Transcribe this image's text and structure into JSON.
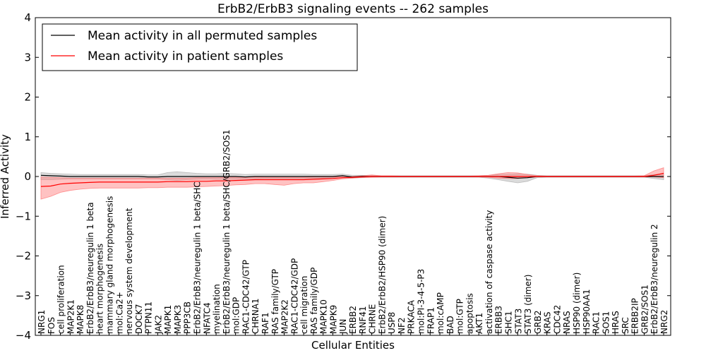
{
  "chart_data": {
    "type": "line",
    "title": "ErbB2/ErbB3 signaling events -- 262 samples",
    "xlabel": "Cellular Entities",
    "ylabel": "Inferred Activity",
    "ylim": [
      -4,
      4
    ],
    "yticks": [
      -4,
      -3,
      -2,
      -1,
      0,
      1,
      2,
      3,
      4
    ],
    "legend_position": "top-left",
    "categories": [
      "NRG1",
      "FOS",
      "cell proliferation",
      "MAP2K1",
      "MAPK8",
      "ErbB2/ErbB3/neuregulin 1 beta",
      "heart morphogenesis",
      "mammary gland morphogenesis",
      "mol:Ca2+",
      "nervous system development",
      "DOCK7",
      "PTPN11",
      "JAK2",
      "MAPK1",
      "MAPK3",
      "PPP3CB",
      "ErbB2/ErbB3/neuregulin 1 beta/SHC",
      "NFATC4",
      "myelination",
      "ErbB2/ErbB3/neuregulin 1 beta/SHC/GRB2/SOS1",
      "mol:GDP",
      "RAC1-CDC42/GTP",
      "CHRNA1",
      "RAF1",
      "RAS family/GTP",
      "MAP2K2",
      "RAC1-CDC42/GDP",
      "cell migration",
      "RAS family/GDP",
      "MAPK10",
      "MAPK9",
      "JUN",
      "ERBB2",
      "RNF41",
      "CHRNE",
      "ErbB2/ErbB2/HSP90 (dimer)",
      "USP8",
      "NF2",
      "PRKACA",
      "mol:PI-3-4-5-P3",
      "FRAP1",
      "mol:cAMP",
      "BAD",
      "mol:GTP",
      "apoptosis",
      "AKT1",
      "activation of caspase activity",
      "ERBB3",
      "SHC1",
      "STAT3",
      "STAT3 (dimer)",
      "GRB2",
      "KRAS",
      "CDC42",
      "NRAS",
      "HSP90 (dimer)",
      "HSP90AA1",
      "RAC1",
      "SOS1",
      "HRAS",
      "SRC",
      "ERBB2IP",
      "GRB2/SOS1",
      "ErbB2/ErbB3/neuregulin 2",
      "NRG2"
    ],
    "series": [
      {
        "name": "Mean activity in all permuted samples",
        "color": "#000000",
        "band_color": "#b0b0b0",
        "values": [
          0.03,
          0.02,
          0.01,
          0.0,
          0.0,
          0.0,
          0.0,
          0.0,
          0.0,
          0.0,
          0.0,
          -0.01,
          -0.01,
          0.0,
          0.0,
          0.0,
          0.0,
          0.0,
          0.0,
          0.0,
          0.0,
          -0.01,
          0.0,
          0.0,
          0.0,
          0.0,
          0.0,
          0.0,
          0.0,
          0.0,
          0.0,
          0.02,
          -0.01,
          0.0,
          0.0,
          0.0,
          0.0,
          0.0,
          0.0,
          0.0,
          0.0,
          0.0,
          0.0,
          0.0,
          0.0,
          0.0,
          0.0,
          0.0,
          -0.02,
          -0.04,
          -0.03,
          0.0,
          0.0,
          0.0,
          0.0,
          0.0,
          0.0,
          0.0,
          0.0,
          0.0,
          0.0,
          0.0,
          0.0,
          0.0,
          0.0
        ],
        "upper": [
          0.1,
          0.08,
          0.07,
          0.06,
          0.05,
          0.05,
          0.05,
          0.05,
          0.05,
          0.05,
          0.05,
          0.04,
          0.04,
          0.1,
          0.12,
          0.1,
          0.08,
          0.07,
          0.07,
          0.08,
          0.07,
          0.05,
          0.06,
          0.06,
          0.06,
          0.06,
          0.06,
          0.06,
          0.05,
          0.05,
          0.05,
          0.06,
          0.03,
          0.03,
          0.02,
          0.02,
          0.02,
          0.02,
          0.02,
          0.02,
          0.02,
          0.02,
          0.02,
          0.02,
          0.02,
          0.02,
          0.03,
          0.05,
          0.06,
          0.07,
          0.06,
          0.03,
          0.02,
          0.02,
          0.02,
          0.02,
          0.02,
          0.02,
          0.02,
          0.02,
          0.02,
          0.02,
          0.02,
          0.05,
          0.07
        ],
        "lower": [
          -0.08,
          -0.08,
          -0.07,
          -0.06,
          -0.06,
          -0.06,
          -0.06,
          -0.06,
          -0.06,
          -0.06,
          -0.06,
          -0.06,
          -0.06,
          -0.08,
          -0.1,
          -0.08,
          -0.07,
          -0.06,
          -0.07,
          -0.07,
          -0.07,
          -0.06,
          -0.06,
          -0.05,
          -0.05,
          -0.05,
          -0.05,
          -0.05,
          -0.05,
          -0.05,
          -0.04,
          -0.03,
          -0.04,
          -0.03,
          -0.02,
          -0.02,
          -0.02,
          -0.02,
          -0.02,
          -0.02,
          -0.02,
          -0.02,
          -0.02,
          -0.02,
          -0.02,
          -0.02,
          -0.04,
          -0.08,
          -0.12,
          -0.16,
          -0.12,
          -0.03,
          -0.02,
          -0.02,
          -0.02,
          -0.02,
          -0.02,
          -0.02,
          -0.02,
          -0.02,
          -0.02,
          -0.02,
          -0.02,
          -0.05,
          -0.08
        ]
      },
      {
        "name": "Mean activity in patient samples",
        "color": "#ff0000",
        "band_color": "#ff7777",
        "values": [
          -0.25,
          -0.24,
          -0.19,
          -0.17,
          -0.16,
          -0.15,
          -0.14,
          -0.14,
          -0.14,
          -0.14,
          -0.14,
          -0.14,
          -0.14,
          -0.13,
          -0.13,
          -0.13,
          -0.12,
          -0.12,
          -0.11,
          -0.11,
          -0.1,
          -0.09,
          -0.08,
          -0.08,
          -0.08,
          -0.08,
          -0.08,
          -0.08,
          -0.07,
          -0.06,
          -0.05,
          -0.03,
          -0.02,
          -0.01,
          0.0,
          0.0,
          0.0,
          0.0,
          0.0,
          0.0,
          0.0,
          0.0,
          0.0,
          0.0,
          0.0,
          0.0,
          0.0,
          0.0,
          0.0,
          0.0,
          0.0,
          0.0,
          0.0,
          0.0,
          0.0,
          0.0,
          0.0,
          0.0,
          0.0,
          0.0,
          0.0,
          0.0,
          0.0,
          0.03,
          0.08
        ],
        "upper": [
          -0.01,
          -0.02,
          -0.03,
          -0.04,
          -0.04,
          -0.04,
          -0.04,
          -0.04,
          -0.04,
          -0.04,
          -0.04,
          -0.04,
          -0.04,
          -0.04,
          -0.04,
          -0.04,
          -0.03,
          -0.03,
          -0.03,
          -0.02,
          -0.02,
          -0.02,
          -0.01,
          -0.02,
          -0.02,
          -0.02,
          -0.02,
          -0.02,
          -0.01,
          -0.01,
          -0.01,
          0.0,
          0.0,
          0.02,
          0.04,
          0.02,
          0.02,
          0.01,
          0.01,
          0.01,
          0.01,
          0.01,
          0.01,
          0.01,
          0.01,
          0.02,
          0.03,
          0.07,
          0.1,
          0.09,
          0.05,
          0.02,
          0.01,
          0.01,
          0.01,
          0.01,
          0.01,
          0.01,
          0.01,
          0.01,
          0.01,
          0.01,
          0.02,
          0.14,
          0.22
        ],
        "lower": [
          -0.57,
          -0.5,
          -0.4,
          -0.35,
          -0.32,
          -0.3,
          -0.29,
          -0.29,
          -0.29,
          -0.29,
          -0.29,
          -0.28,
          -0.28,
          -0.27,
          -0.27,
          -0.27,
          -0.26,
          -0.25,
          -0.24,
          -0.23,
          -0.21,
          -0.2,
          -0.18,
          -0.18,
          -0.2,
          -0.22,
          -0.18,
          -0.16,
          -0.16,
          -0.13,
          -0.1,
          -0.06,
          -0.04,
          -0.02,
          -0.02,
          -0.01,
          -0.01,
          -0.01,
          -0.01,
          -0.01,
          -0.01,
          -0.01,
          -0.01,
          -0.01,
          -0.01,
          -0.01,
          -0.02,
          -0.04,
          -0.05,
          -0.05,
          -0.03,
          -0.01,
          -0.01,
          -0.01,
          -0.01,
          -0.01,
          -0.01,
          -0.01,
          -0.01,
          -0.01,
          -0.01,
          -0.01,
          -0.01,
          -0.01,
          -0.03
        ]
      }
    ]
  }
}
